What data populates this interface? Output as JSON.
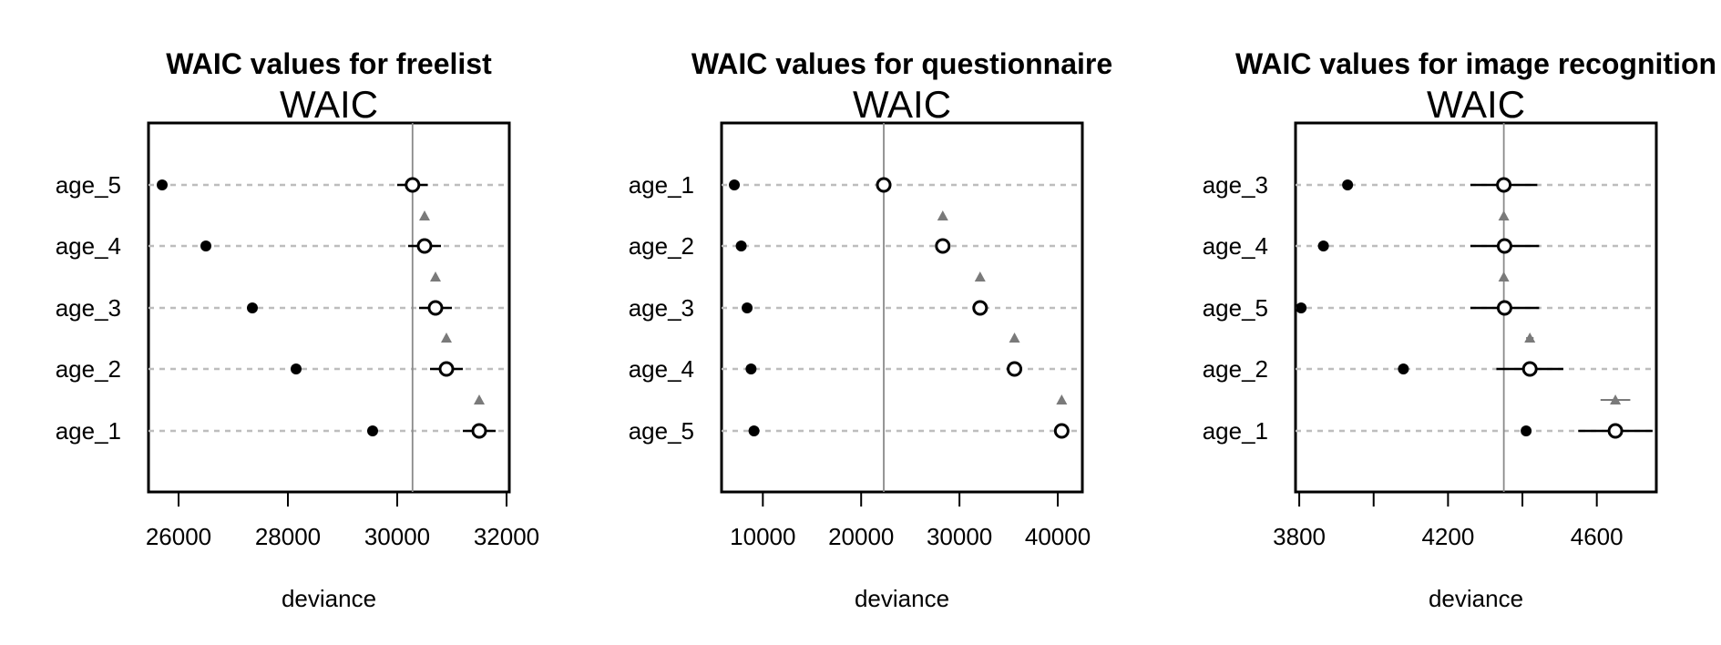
{
  "chart_data": [
    {
      "type": "scatter",
      "title": "WAIC values for freelist",
      "subtitle": "WAIC",
      "xlabel": "deviance",
      "xlim": [
        25450,
        32050
      ],
      "xticks": [
        26000,
        28000,
        30000,
        32000
      ],
      "xtick_labels": [
        "26000",
        "28000",
        "30000",
        "32000"
      ],
      "reference_line": 30280,
      "categories": [
        "age_5",
        "age_4",
        "age_3",
        "age_2",
        "age_1"
      ],
      "in_sample": [
        25700,
        26500,
        27350,
        28150,
        29550
      ],
      "waic": [
        30280,
        30500,
        30700,
        30900,
        31500
      ],
      "waic_lower": [
        30000,
        30200,
        30400,
        30600,
        31200
      ],
      "waic_upper": [
        30560,
        30800,
        31000,
        31200,
        31800
      ],
      "dwaic": [
        30500,
        30700,
        30900,
        31500
      ],
      "dwaic_lower": [
        null,
        null,
        null,
        null
      ],
      "dwaic_upper": [
        null,
        null,
        null,
        null
      ]
    },
    {
      "type": "scatter",
      "title": "WAIC values for questionnaire",
      "subtitle": "WAIC",
      "xlabel": "deviance",
      "xlim": [
        5800,
        42500
      ],
      "xticks": [
        10000,
        20000,
        30000,
        40000
      ],
      "xtick_labels": [
        "10000",
        "20000",
        "30000",
        "40000"
      ],
      "reference_line": 22300,
      "categories": [
        "age_1",
        "age_2",
        "age_3",
        "age_4",
        "age_5"
      ],
      "in_sample": [
        7100,
        7800,
        8400,
        8800,
        9100
      ],
      "waic": [
        22300,
        28300,
        32100,
        35600,
        40400
      ],
      "waic_lower": [
        21800,
        27800,
        31600,
        35100,
        39700
      ],
      "waic_upper": [
        22800,
        28800,
        32600,
        36100,
        41100
      ],
      "dwaic": [
        28300,
        32100,
        35600,
        40400
      ],
      "dwaic_lower": [
        null,
        null,
        null,
        null
      ],
      "dwaic_upper": [
        null,
        null,
        null,
        null
      ]
    },
    {
      "type": "scatter",
      "title": "WAIC values for image recognition",
      "subtitle": "WAIC",
      "xlabel": "deviance",
      "xlim": [
        3790,
        4760
      ],
      "xticks": [
        3800,
        4000,
        4200,
        4400,
        4600
      ],
      "xtick_labels": [
        "3800",
        "",
        "4200",
        "",
        "4600"
      ],
      "reference_line": 4350,
      "categories": [
        "age_3",
        "age_4",
        "age_5",
        "age_2",
        "age_1"
      ],
      "in_sample": [
        3930,
        3865,
        3805,
        4080,
        4410
      ],
      "waic": [
        4350,
        4352,
        4352,
        4420,
        4650
      ],
      "waic_lower": [
        4260,
        4260,
        4260,
        4330,
        4550
      ],
      "waic_upper": [
        4440,
        4445,
        4445,
        4510,
        4750
      ],
      "dwaic": [
        4350,
        4350,
        4420,
        4650
      ],
      "dwaic_lower": [
        null,
        null,
        4410,
        4610
      ],
      "dwaic_upper": [
        null,
        null,
        4430,
        4690
      ]
    }
  ]
}
